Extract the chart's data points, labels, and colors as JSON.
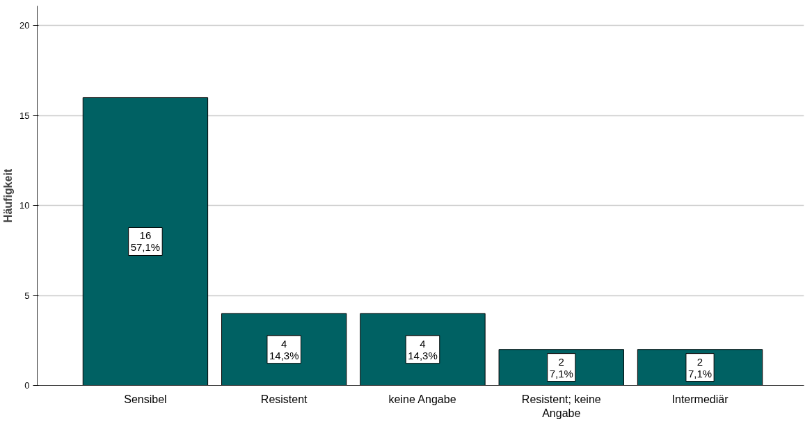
{
  "chart_data": {
    "type": "bar",
    "ylabel": "Häufigkeit",
    "categories": [
      "Sensibel",
      "Resistent",
      "keine Angabe",
      "Resistent; keine Angabe",
      "Intermediär"
    ],
    "values": [
      16,
      4,
      4,
      2,
      2
    ],
    "value_labels": [
      "16\n57,1%",
      "4\n14,3%",
      "4\n14,3%",
      "2\n7,1%",
      "2\n7,1%"
    ],
    "color": "#006163",
    "ylim": [
      0,
      21.1
    ],
    "yticks": [
      0,
      5,
      10,
      15,
      20
    ],
    "grid": "y"
  }
}
